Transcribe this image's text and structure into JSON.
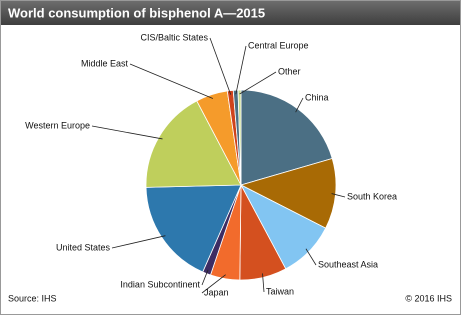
{
  "chart_data": {
    "type": "pie",
    "title": "World consumption of bisphenol A—2015",
    "categories": [
      "China",
      "South Korea",
      "Southeast Asia",
      "Taiwan",
      "Japan",
      "Indian Subcontinent",
      "United States",
      "Western Europe",
      "Middle East",
      "CIS/Baltic States",
      "Central Europe",
      "Other"
    ],
    "values": [
      20.5,
      12,
      9.7,
      8,
      5,
      1.4,
      18,
      17.7,
      5.4,
      1,
      0.8,
      0.5
    ],
    "colors": [
      "#4b6f84",
      "#a86a05",
      "#82c5f2",
      "#d4501f",
      "#f26b2c",
      "#3d2c63",
      "#2d78ad",
      "#bfcf5c",
      "#f59b2b",
      "#cf431c",
      "#4b6f84",
      "#c9dc8e"
    ],
    "source": "Source: IHS",
    "copyright": "© 2016 IHS"
  }
}
